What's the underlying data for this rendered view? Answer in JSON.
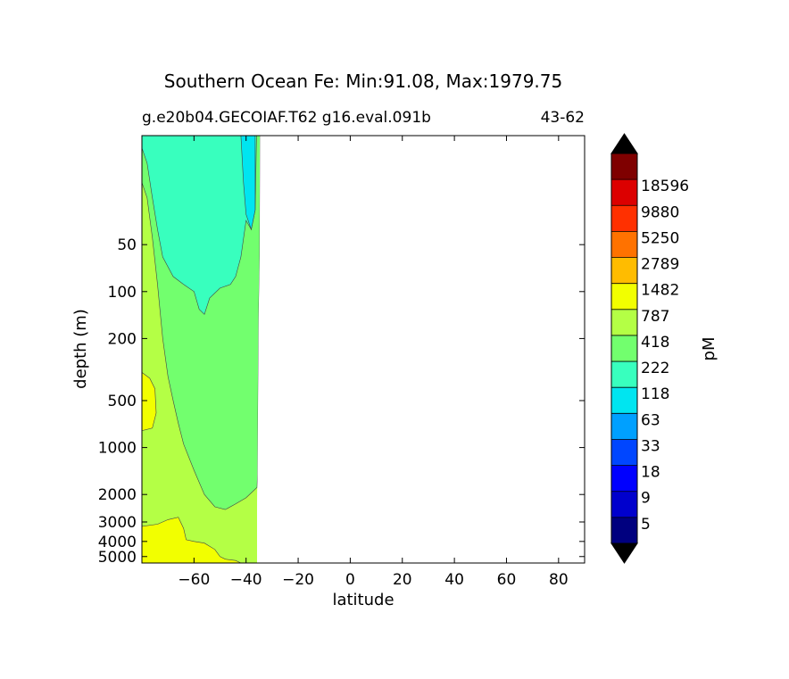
{
  "chart_data": {
    "type": "heatmap",
    "title": "Southern Ocean Fe: Min:91.08, Max:1979.75",
    "subtitle_left": "g.e20b04.GECOIAF.T62 g16.eval.091b",
    "subtitle_right": "43-62",
    "xlabel": "latitude",
    "ylabel": "depth (m)",
    "xlim": [
      -80,
      90
    ],
    "ylim": [
      5500,
      10
    ],
    "y_scale": "log",
    "x_ticks": [
      -60,
      -40,
      -20,
      0,
      20,
      40,
      60,
      80
    ],
    "x_tick_labels": [
      "−60",
      "−40",
      "−20",
      "0",
      "20",
      "40",
      "60",
      "80"
    ],
    "y_ticks": [
      50,
      100,
      200,
      500,
      1000,
      2000,
      3000,
      4000,
      5000
    ],
    "y_tick_labels": [
      "50",
      "100",
      "200",
      "500",
      "1000",
      "2000",
      "3000",
      "4000",
      "5000"
    ],
    "data_extent_lat": [
      -80,
      -35
    ],
    "colorbar": {
      "label": "pM",
      "levels": [
        "5",
        "9",
        "18",
        "33",
        "63",
        "118",
        "222",
        "418",
        "787",
        "1482",
        "2789",
        "5250",
        "9880",
        "18596"
      ],
      "colors": [
        "#00007f",
        "#0000cd",
        "#0000ff",
        "#0046ff",
        "#00a0ff",
        "#00e5f0",
        "#38ffbe",
        "#72ff6e",
        "#b4ff45",
        "#f2ff00",
        "#ffbc00",
        "#ff7200",
        "#ff3000",
        "#dc0000",
        "#7f0000"
      ],
      "extend": "both"
    },
    "contour_regions": [
      {
        "value_band": "222-418",
        "color": "#38ffbe",
        "lat_range": [
          -80,
          -35
        ],
        "depth_range": [
          10,
          250
        ]
      },
      {
        "value_band": "63-118",
        "color": "#00e5f0",
        "lat_range": [
          -42,
          -36
        ],
        "depth_range": [
          10,
          40
        ]
      },
      {
        "value_band": "418-787",
        "color": "#72ff6e",
        "lat_range": [
          -72,
          -35
        ],
        "depth_range": [
          100,
          2500
        ]
      },
      {
        "value_band": "787-1482",
        "color": "#b4ff45",
        "lat_range": [
          -80,
          -35
        ],
        "depth_range": [
          30,
          5500
        ]
      },
      {
        "value_band": "1482-2789",
        "color": "#f2ff00",
        "lat_range": [
          -75,
          -40
        ],
        "depth_range": [
          3000,
          5500
        ]
      }
    ]
  }
}
